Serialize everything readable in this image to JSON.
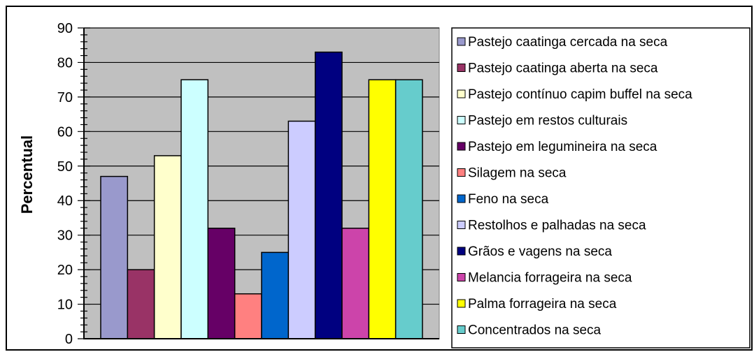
{
  "chart_data": {
    "type": "bar",
    "ylabel": "Percentual",
    "ylim": [
      0,
      90
    ],
    "yticks": [
      0,
      10,
      20,
      30,
      40,
      50,
      60,
      70,
      80,
      90
    ],
    "grid": true,
    "plot_background": "#c0c0c0",
    "legend_position": "right",
    "series": [
      {
        "name": "Pastejo caatinga cercada na seca",
        "value": 47,
        "color": "#9999cc"
      },
      {
        "name": "Pastejo caatinga aberta na seca",
        "value": 20,
        "color": "#993366"
      },
      {
        "name": "Pastejo contínuo capim buffel na seca",
        "value": 53,
        "color": "#ffffcc"
      },
      {
        "name": "Pastejo em restos culturais",
        "value": 75,
        "color": "#ccffff"
      },
      {
        "name": "Pastejo em legumineira na seca",
        "value": 32,
        "color": "#660066"
      },
      {
        "name": "Silagem na seca",
        "value": 13,
        "color": "#ff8080"
      },
      {
        "name": "Feno na seca",
        "value": 25,
        "color": "#0066cc"
      },
      {
        "name": "Restolhos e palhadas na seca",
        "value": 63,
        "color": "#ccccff"
      },
      {
        "name": "Grãos e vagens na seca",
        "value": 83,
        "color": "#000080"
      },
      {
        "name": "Melancia forrageira na seca",
        "value": 32,
        "color": "#cc44aa"
      },
      {
        "name": "Palma forrageira na seca",
        "value": 75,
        "color": "#ffff00"
      },
      {
        "name": "Concentrados na seca",
        "value": 75,
        "color": "#66cccc"
      }
    ]
  }
}
